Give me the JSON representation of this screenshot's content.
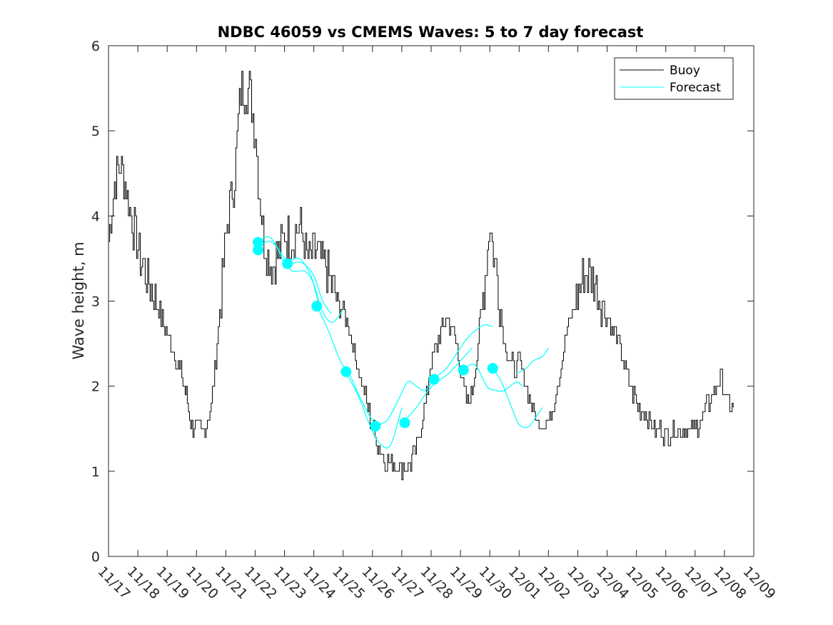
{
  "chart_data": {
    "type": "line",
    "title": "NDBC 46059 vs CMEMS Waves: 5 to 7 day forecast",
    "xlabel": "",
    "ylabel": "Wave height, m",
    "xlim": [
      0,
      22
    ],
    "ylim": [
      0,
      6
    ],
    "y_ticks": [
      0,
      1,
      2,
      3,
      4,
      5,
      6
    ],
    "x_ticks": [
      0,
      1,
      2,
      3,
      4,
      5,
      6,
      7,
      8,
      9,
      10,
      11,
      12,
      13,
      14,
      15,
      16,
      17,
      18,
      19,
      20,
      21,
      22
    ],
    "x_tick_labels": [
      "11/17",
      "11/18",
      "11/19",
      "11/20",
      "11/21",
      "11/22",
      "11/23",
      "11/24",
      "11/25",
      "11/26",
      "11/27",
      "11/28",
      "11/29",
      "11/30",
      "12/01",
      "12/02",
      "12/03",
      "12/04",
      "12/05",
      "12/06",
      "12/07",
      "12/08",
      "12/09"
    ],
    "grid": false,
    "legend_position": "top-right",
    "series": [
      {
        "name": "Buoy",
        "color": "#000000",
        "x": [
          0,
          0.2,
          0.4,
          0.6,
          1.0,
          1.5,
          2.0,
          2.5,
          2.65,
          2.8,
          3.2,
          3.5,
          3.7,
          4.0,
          4.3,
          4.5,
          4.8,
          5.0,
          5.1,
          5.3,
          5.6,
          5.8,
          6.0,
          6.2,
          6.5,
          6.8,
          7.0,
          7.4,
          7.8,
          8.2,
          8.5,
          8.8,
          9.0,
          9.3,
          9.6,
          10.0,
          10.3,
          10.5,
          10.8,
          11.0,
          11.2,
          11.5,
          11.8,
          12.0,
          12.2,
          12.4,
          12.6,
          12.8,
          13.0,
          13.2,
          13.5,
          13.8,
          14.0,
          14.3,
          14.6,
          15.0,
          15.3,
          15.6,
          15.9,
          16.2,
          16.5,
          17.0,
          17.4,
          17.7,
          18.0,
          18.3,
          18.6,
          19.0,
          19.5,
          20.0,
          20.3,
          20.6,
          20.9,
          21.1,
          21.3
        ],
        "values": [
          3.7,
          4.4,
          4.6,
          4.3,
          3.6,
          3.1,
          2.6,
          2.1,
          1.9,
          1.55,
          1.45,
          1.75,
          2.5,
          3.8,
          4.5,
          5.5,
          5.5,
          5.0,
          4.4,
          3.7,
          3.4,
          3.6,
          3.8,
          3.7,
          3.9,
          3.5,
          3.6,
          3.4,
          3.0,
          2.7,
          2.2,
          1.8,
          1.5,
          1.2,
          1.1,
          1.05,
          1.1,
          1.3,
          1.8,
          2.3,
          2.5,
          2.8,
          2.6,
          2.2,
          1.8,
          1.9,
          2.5,
          3.2,
          3.9,
          3.4,
          2.5,
          2.2,
          2.3,
          1.9,
          1.6,
          1.55,
          2.0,
          2.6,
          3.0,
          3.3,
          3.3,
          2.8,
          2.5,
          2.1,
          1.8,
          1.65,
          1.5,
          1.45,
          1.5,
          1.5,
          1.7,
          1.9,
          2.1,
          1.8,
          1.75
        ]
      },
      {
        "name": "Forecast",
        "color": "#00FFFF",
        "segments": [
          {
            "x": [
              5.1,
              5.4,
              5.7,
              6.0,
              6.3,
              6.7,
              7.0,
              7.2
            ],
            "values": [
              3.6,
              3.7,
              3.65,
              3.45,
              3.35,
              3.35,
              3.2,
              2.95
            ]
          },
          {
            "x": [
              5.1,
              5.5,
              5.9,
              6.2,
              6.6,
              7.0,
              7.3,
              7.6
            ],
            "values": [
              3.7,
              3.75,
              3.55,
              3.45,
              3.45,
              3.3,
              3.0,
              2.85
            ]
          },
          {
            "x": [
              6.1,
              6.5,
              6.9,
              7.2,
              7.6,
              8.0
            ],
            "values": [
              3.45,
              3.5,
              3.3,
              2.95,
              2.75,
              2.9
            ]
          },
          {
            "x": [
              7.1,
              7.5,
              7.9,
              8.2,
              8.6,
              9.0,
              9.3
            ],
            "values": [
              2.95,
              2.65,
              2.3,
              2.15,
              1.85,
              1.6,
              1.55
            ]
          },
          {
            "x": [
              8.1,
              8.5,
              8.9,
              9.2,
              9.6,
              10.0
            ],
            "values": [
              2.15,
              1.9,
              1.55,
              1.35,
              1.3,
              1.75
            ]
          },
          {
            "x": [
              9.1,
              9.5,
              9.9,
              10.2,
              10.5,
              10.8,
              11.1
            ],
            "values": [
              1.55,
              1.6,
              1.85,
              2.05,
              2.0,
              1.95,
              2.1
            ]
          },
          {
            "x": [
              10.1,
              10.5,
              10.9,
              11.2,
              11.6,
              12.0,
              12.4
            ],
            "values": [
              1.6,
              1.75,
              1.95,
              2.05,
              2.15,
              2.3,
              2.45
            ]
          },
          {
            "x": [
              11.1,
              11.5,
              11.9,
              12.2,
              12.5,
              12.8,
              13.1
            ],
            "values": [
              2.1,
              2.2,
              2.4,
              2.55,
              2.65,
              2.72,
              2.7
            ]
          },
          {
            "x": [
              12.1,
              12.5,
              12.9,
              13.2,
              13.5,
              13.9,
              14.1
            ],
            "values": [
              2.2,
              2.25,
              2.0,
              1.95,
              1.95,
              2.05,
              2.0
            ]
          },
          {
            "x": [
              13.1,
              13.4,
              13.8,
              14.0,
              14.3,
              14.6,
              14.8
            ],
            "values": [
              2.2,
              2.05,
              1.7,
              1.55,
              1.52,
              1.65,
              1.75
            ]
          },
          {
            "x": [
              13.9,
              14.2,
              14.5,
              14.8,
              15.0
            ],
            "values": [
              2.15,
              2.2,
              2.3,
              2.35,
              2.45
            ]
          }
        ],
        "markers": {
          "x": [
            5.1,
            5.1,
            6.1,
            7.1,
            8.1,
            9.1,
            10.1,
            11.1,
            12.1,
            13.1
          ],
          "values": [
            3.6,
            3.69,
            3.44,
            2.94,
            2.17,
            1.53,
            1.57,
            2.08,
            2.19,
            2.21
          ]
        }
      }
    ]
  }
}
